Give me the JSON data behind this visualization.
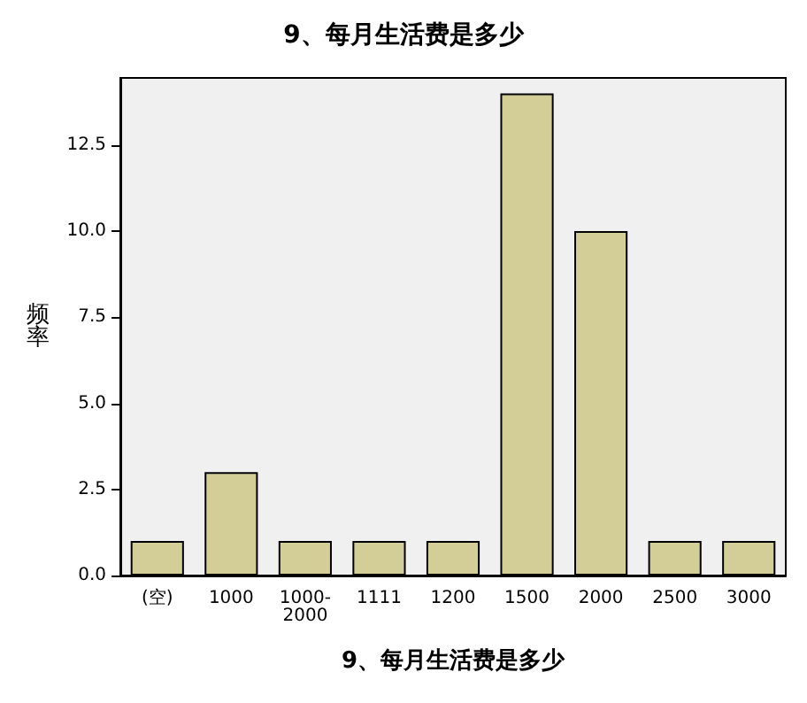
{
  "chart_data": {
    "type": "bar",
    "title": "9、每月生活费是多少",
    "xlabel": "9、每月生活费是多少",
    "ylabel": "频率",
    "categories": [
      "(空)",
      "1000",
      "1000-2000",
      "1111",
      "1200",
      "1500",
      "2000",
      "2500",
      "3000"
    ],
    "values": [
      1,
      3,
      1,
      1,
      1,
      14,
      10,
      1,
      1
    ],
    "color": "#d3ce97",
    "ylim": [
      0,
      14.45
    ],
    "yticks": [
      {
        "value": 0,
        "label": "0.0"
      },
      {
        "value": 2.5,
        "label": "2.5"
      },
      {
        "value": 5,
        "label": "5.0"
      },
      {
        "value": 7.5,
        "label": "7.5"
      },
      {
        "value": 10,
        "label": "10.0"
      },
      {
        "value": 12.5,
        "label": "12.5"
      }
    ],
    "grid": false
  }
}
